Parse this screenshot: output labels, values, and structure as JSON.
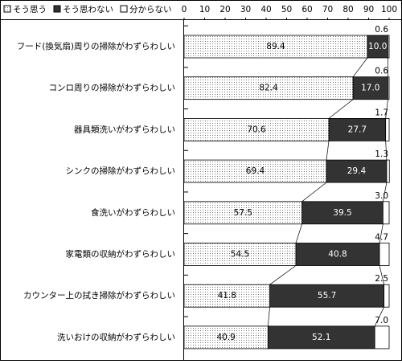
{
  "chart_data": {
    "type": "stacked-bar",
    "categories": [
      "フード(換気扇)周りの掃除がわずらわしい",
      "コンロ周りの掃除がわずらわしい",
      "器具類洗いがわずらわしい",
      "シンクの掃除がわずらわしい",
      "食洗いがわずらわしい",
      "家電類の収納がわずらわしい",
      "カウンター上の拭き掃除がわずらわしい",
      "洗いおけの収納がわずらわしい"
    ],
    "series": [
      {
        "name": "そう思う",
        "color": "#ffffff",
        "pattern": "dots",
        "values": [
          89.4,
          82.4,
          70.6,
          69.4,
          57.5,
          54.5,
          41.8,
          40.9
        ],
        "value_labels": [
          "89.4",
          "82.4",
          "70.6",
          "69.4",
          "57.5",
          "54.5",
          "41.8",
          "40.9"
        ]
      },
      {
        "name": "そう思わない",
        "color": "#333333",
        "values": [
          10.0,
          17.0,
          27.7,
          29.4,
          39.5,
          40.8,
          55.7,
          52.1
        ],
        "value_labels": [
          "10.0",
          "17.0",
          "27.7",
          "29.4",
          "39.5",
          "40.8",
          "55.7",
          "52.1"
        ]
      },
      {
        "name": "分からない",
        "color": "#ffffff",
        "values": [
          0.6,
          0.6,
          1.7,
          1.3,
          3.0,
          4.7,
          2.5,
          7.0
        ],
        "value_labels": [
          "0.6",
          "0.6",
          "1.7",
          "1.3",
          "3.0",
          "4.7",
          "2.5",
          "7.0"
        ]
      }
    ],
    "xlim": [
      0,
      100
    ],
    "xticks": [
      0,
      10,
      20,
      30,
      40,
      50,
      60,
      70,
      80,
      90,
      100
    ],
    "legend": "top-left"
  }
}
